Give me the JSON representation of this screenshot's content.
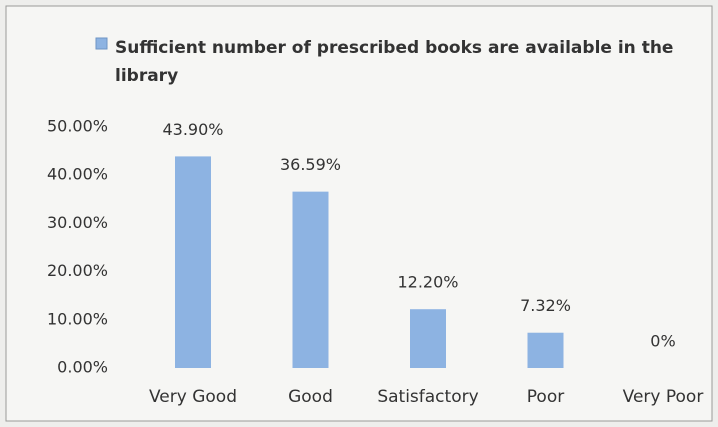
{
  "chart_data": {
    "type": "bar",
    "categories": [
      "Very Good",
      "Good",
      "Satisfactory",
      "Poor",
      "Very Poor"
    ],
    "series": [
      {
        "name": "Sufficient number of prescribed books are available in the library",
        "color": "#8db3e2",
        "values": [
          43.9,
          36.59,
          12.2,
          7.32,
          0
        ],
        "value_labels": [
          "43.90%",
          "36.59%",
          "12.20%",
          "7.32%",
          "0%"
        ]
      }
    ],
    "ylim": [
      0,
      50
    ],
    "yticks": [
      {
        "value": 0,
        "label": "0.00%"
      },
      {
        "value": 10,
        "label": "10.00%"
      },
      {
        "value": 20,
        "label": "20.00%"
      },
      {
        "value": 30,
        "label": "30.00%"
      },
      {
        "value": 40,
        "label": "40.00%"
      },
      {
        "value": 50,
        "label": "50.00%"
      }
    ],
    "legend": "top",
    "grid": false
  }
}
